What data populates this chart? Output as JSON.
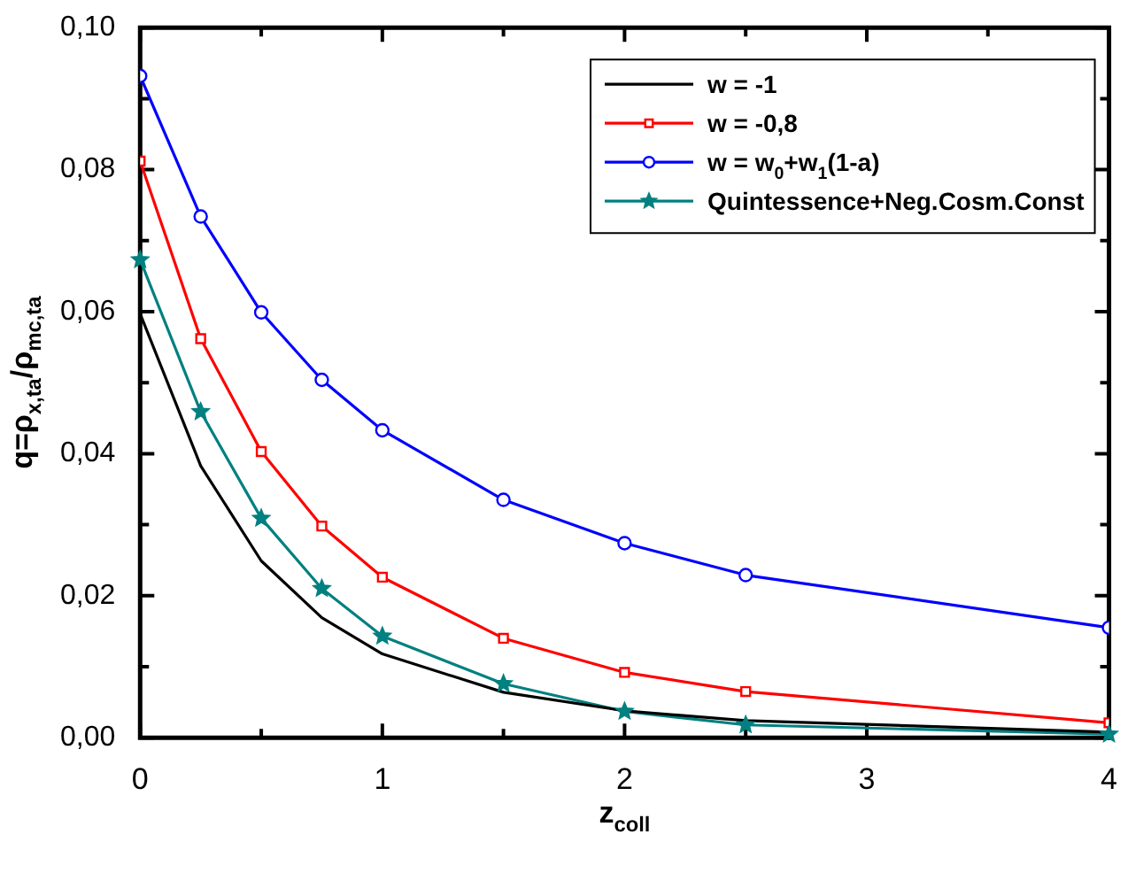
{
  "chart_data": {
    "type": "line",
    "xlabel": "z$_{coll}$",
    "ylabel": "q=ρ$_{x,ta}$/ρ$_{mc,ta}$",
    "xlim": [
      0,
      4
    ],
    "xticks": [
      0,
      {
        "value": 0.5,
        "label": null
      },
      1,
      {
        "value": 1.5,
        "label": null
      },
      2,
      {
        "value": 2.5,
        "label": null
      },
      3,
      {
        "value": 3.5,
        "label": null
      },
      4
    ],
    "ylim": [
      0,
      0.1
    ],
    "yticks": [
      {
        "value": 0,
        "label": "0,00"
      },
      {
        "value": 0.01,
        "label": null
      },
      {
        "value": 0.02,
        "label": "0,02"
      },
      {
        "value": 0.03,
        "label": null
      },
      {
        "value": 0.04,
        "label": "0,04"
      },
      {
        "value": 0.05,
        "label": null
      },
      {
        "value": 0.06,
        "label": "0,06"
      },
      {
        "value": 0.07,
        "label": null
      },
      {
        "value": 0.08,
        "label": "0,08"
      },
      {
        "value": 0.09,
        "label": null
      },
      {
        "value": 0.1,
        "label": "0,10"
      }
    ],
    "x": [
      0,
      0.25,
      0.5,
      0.75,
      1,
      1.5,
      2,
      2.5,
      4
    ],
    "grid": false,
    "legend": "top right",
    "line_style": "solid",
    "series": [
      {
        "name": "w = -1",
        "color": "#000000",
        "marker": "none",
        "values": [
          0.0597,
          0.0383,
          0.0249,
          0.0169,
          0.0118,
          0.0064,
          0.0038,
          0.0024,
          0.0008
        ]
      },
      {
        "name": "w = -0,8",
        "color": "#ff0000",
        "marker": "square",
        "values": [
          0.0812,
          0.0562,
          0.0403,
          0.0298,
          0.0226,
          0.014,
          0.0092,
          0.0065,
          0.0021
        ]
      },
      {
        "name": "w = w$_{0}$+w$_{1}$(1-a)",
        "color": "#0000ff",
        "marker": "circle",
        "values": [
          0.0932,
          0.0734,
          0.0599,
          0.0504,
          0.0433,
          0.0335,
          0.0274,
          0.0229,
          0.0155
        ]
      },
      {
        "name": "Quintessence+Neg.Cosm.Const",
        "color": "#008080",
        "marker": "star",
        "values": [
          0.0673,
          0.0459,
          0.0309,
          0.021,
          0.0143,
          0.0076,
          0.0037,
          0.0018,
          0.0005
        ]
      }
    ]
  }
}
